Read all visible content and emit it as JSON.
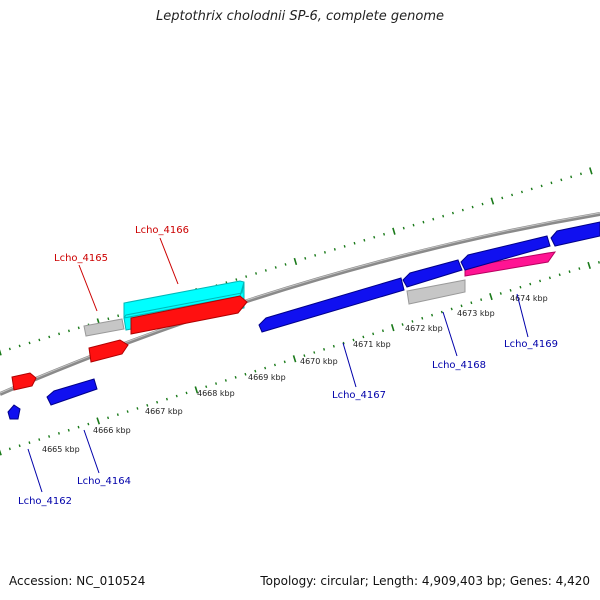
{
  "header": {
    "title": "Leptothrix cholodnii SP-6, complete genome"
  },
  "footer": {
    "accession": "Accession: NC_010524",
    "summary": "Topology: circular; Length: 4,909,403 bp; Genes: 4,420"
  },
  "colors": {
    "red": "#ff1010",
    "blue": "#1010f0",
    "cyan": "#00ffff",
    "pink": "#ff1493",
    "gray": "#c8c8c8",
    "backbone": "#808080",
    "tick": "#1a7a1a",
    "label_red": "#cc0000",
    "label_blue": "#0000aa"
  },
  "scale_labels": [
    "4665 kbp",
    "4666 kbp",
    "4667 kbp",
    "4668 kbp",
    "4669 kbp",
    "4670 kbp",
    "4671 kbp",
    "4672 kbp",
    "4673 kbp",
    "4674 kbp"
  ],
  "gene_labels": {
    "lcho_4162": "Lcho_4162",
    "lcho_4164": "Lcho_4164",
    "lcho_4165": "Lcho_4165",
    "lcho_4166": "Lcho_4166",
    "lcho_4167": "Lcho_4167",
    "lcho_4168": "Lcho_4168",
    "lcho_4169": "Lcho_4169"
  }
}
